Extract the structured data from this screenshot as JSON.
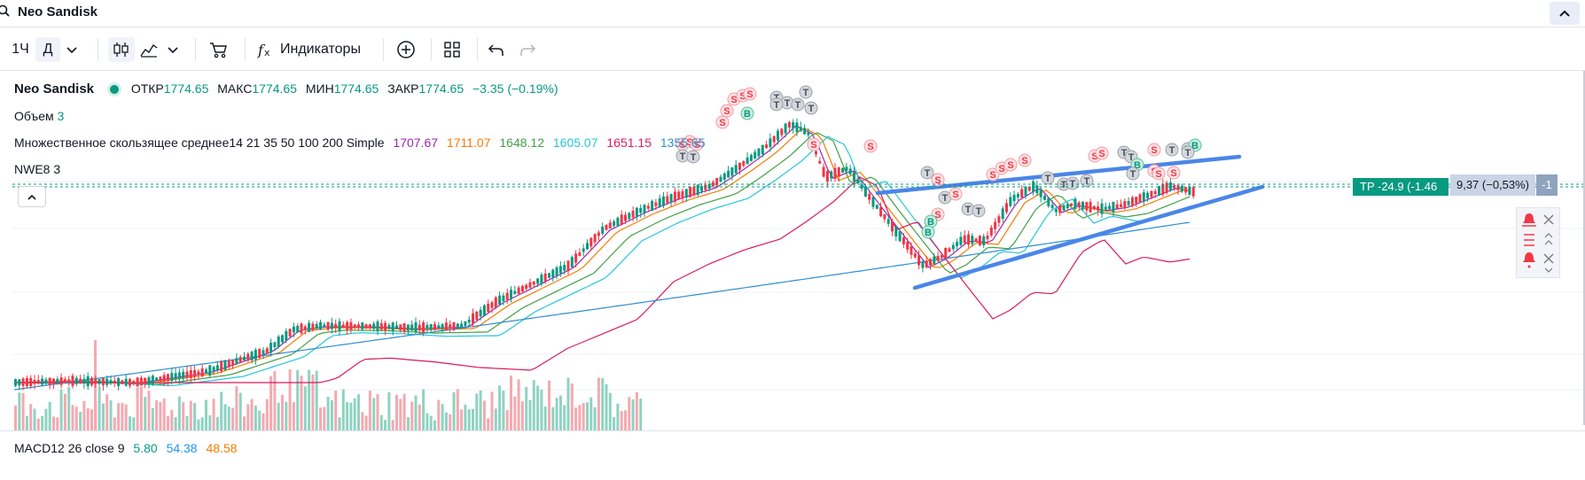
{
  "header": {
    "symbol": "Neo Sandisk"
  },
  "toolbar": {
    "interval_1h": "1Ч",
    "interval_day": "Д",
    "indicators_label": "Индикаторы"
  },
  "legend": {
    "symbol": "Neo Sandisk",
    "open_label": "ОТКР",
    "open_value": "1774.65",
    "high_label": "МАКС",
    "high_value": "1774.65",
    "low_label": "МИН",
    "low_value": "1774.65",
    "close_label": "ЗАКР",
    "close_value": "1774.65",
    "change": "−3.35 (−0.19%)",
    "volume_label": "Объем",
    "volume_value": "3",
    "mma_label": "Множественное скользящее среднее",
    "mma_params": "14 21 35 50 100 200 Simple",
    "mma_values": [
      {
        "value": "1707.67",
        "color": "#9c27b0"
      },
      {
        "value": "1711.07",
        "color": "#f57c00"
      },
      {
        "value": "1648.12",
        "color": "#43a047"
      },
      {
        "value": "1605.07",
        "color": "#26c6da"
      },
      {
        "value": "1651.15",
        "color": "#d81b60"
      },
      {
        "value": "1355.65",
        "color": "#2f8ecf"
      }
    ],
    "nwe_label": "NWE",
    "nwe_params": "8 3"
  },
  "macd": {
    "label": "MACD",
    "params": "12 26 close 9",
    "values": [
      {
        "value": "5.80",
        "color": "#089981"
      },
      {
        "value": "54.38",
        "color": "#2196f3"
      },
      {
        "value": "48.58",
        "color": "#f57c00"
      }
    ]
  },
  "trade": {
    "tp_label": "TP -24.9 (-1.46",
    "position_label": "9,37 (−0,53%)",
    "qty_label": "-1"
  },
  "colors": {
    "up": "#089981",
    "down": "#f23645",
    "trendline": "#4a86e8",
    "accent": "#2962ff"
  },
  "chart_data": {
    "type": "candlestick",
    "ma_periods": [
      14,
      21,
      35,
      50,
      100,
      200
    ],
    "ma_last_values": [
      1707.67,
      1711.07,
      1648.12,
      1605.07,
      1651.15,
      1355.65
    ],
    "last_close": 1774.65,
    "signal_markers": [
      "S",
      "B",
      "T"
    ]
  }
}
